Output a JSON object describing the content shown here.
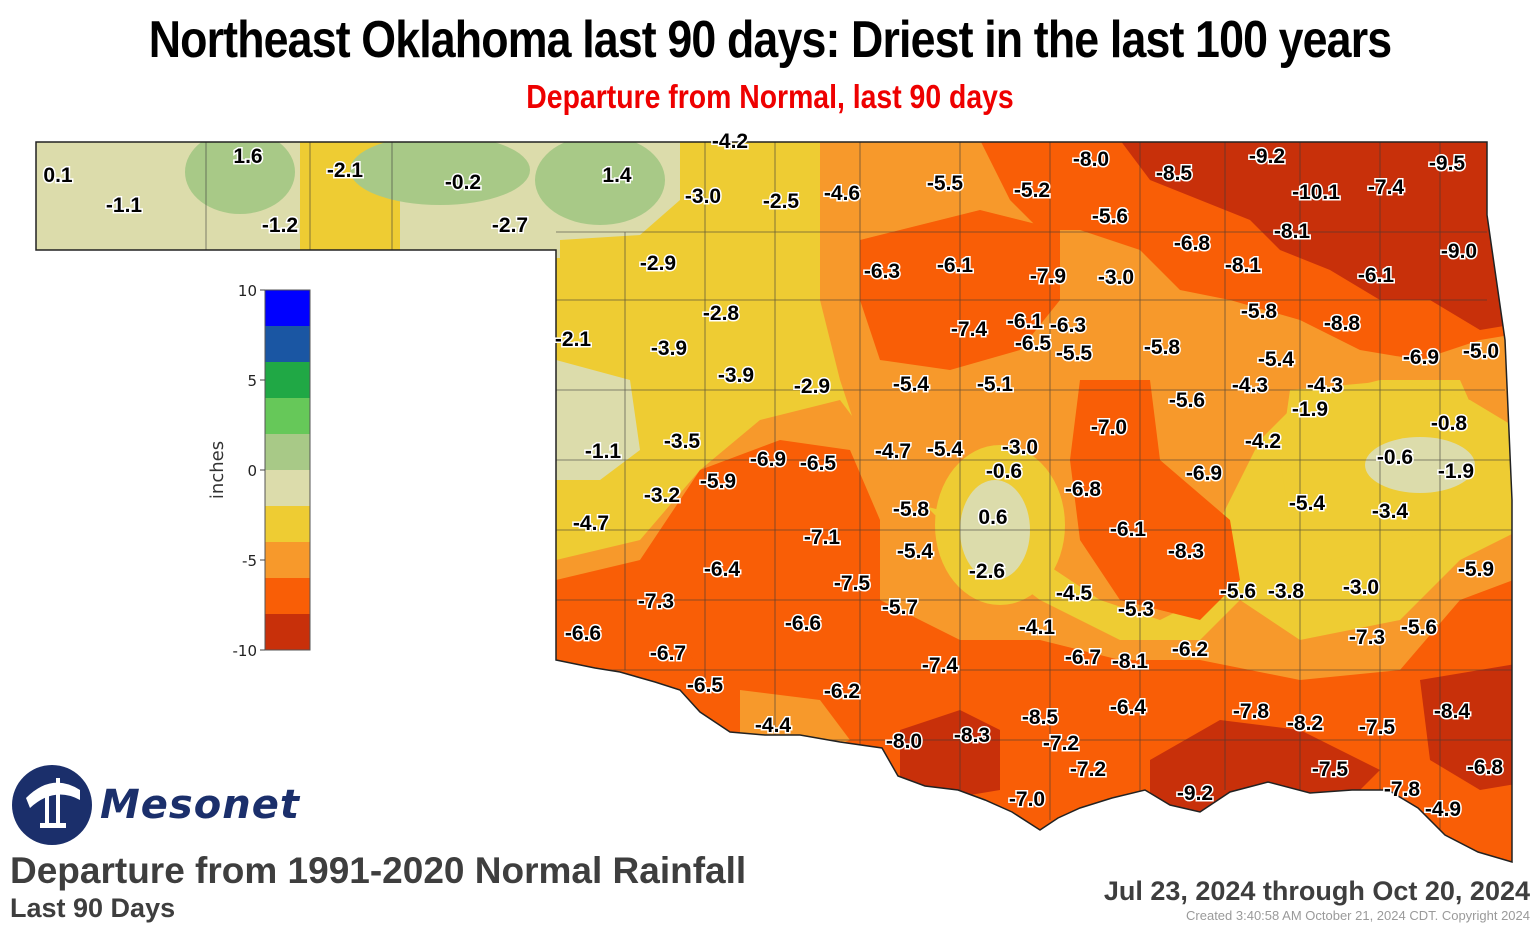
{
  "title": "Northeast Oklahoma last 90 days: Driest in the last 100 years",
  "subtitle": "Departure from Normal, last 90 days",
  "brand": "Mesonet",
  "caption": {
    "title": "Departure from 1991-2020 Normal Rainfall",
    "period": "Last 90 Days",
    "date_range": "Jul 23, 2024 through Oct 20, 2024",
    "created": "Created 3:40:58 AM October 21, 2024 CDT. Copyright 2024"
  },
  "legend": {
    "unit": "inches",
    "tick_labels": [
      "10",
      "5",
      "0",
      "-5",
      "-10"
    ],
    "colors": [
      "#0000ff",
      "#1a56a3",
      "#20a845",
      "#66c859",
      "#a8c987",
      "#dcdcab",
      "#eecc33",
      "#f7992b",
      "#f95e06",
      "#c8300a"
    ]
  },
  "palette": {
    "positive_small": "#dcdcab",
    "green_light": "#a8c987",
    "yellow": "#eecc33",
    "orange_light": "#f7992b",
    "orange": "#f95e06",
    "red": "#c8300a"
  },
  "values": [
    {
      "id": "v1",
      "text": "0.1"
    },
    {
      "id": "v2",
      "text": "-1.1"
    },
    {
      "id": "v3",
      "text": "1.6"
    },
    {
      "id": "v4",
      "text": "-1.2"
    },
    {
      "id": "v5",
      "text": "-2.1"
    },
    {
      "id": "v6",
      "text": "-0.2"
    },
    {
      "id": "v7",
      "text": "-2.7"
    },
    {
      "id": "v8",
      "text": "1.4"
    },
    {
      "id": "v9",
      "text": "-4.2"
    },
    {
      "id": "v10",
      "text": "-3.0"
    },
    {
      "id": "v11",
      "text": "-2.5"
    },
    {
      "id": "v12",
      "text": "-4.6"
    },
    {
      "id": "v13",
      "text": "-5.5"
    },
    {
      "id": "v14",
      "text": "-5.2"
    },
    {
      "id": "v15",
      "text": "-8.0"
    },
    {
      "id": "v16",
      "text": "-8.5"
    },
    {
      "id": "v17",
      "text": "-9.2"
    },
    {
      "id": "v18",
      "text": "-10.1"
    },
    {
      "id": "v19",
      "text": "-7.4"
    },
    {
      "id": "v20",
      "text": "-9.5"
    },
    {
      "id": "v21",
      "text": "-5.6"
    },
    {
      "id": "v22",
      "text": "-6.8"
    },
    {
      "id": "v23",
      "text": "-8.1"
    },
    {
      "id": "v24",
      "text": "-9.0"
    },
    {
      "id": "v25",
      "text": "-2.9"
    },
    {
      "id": "v26",
      "text": "-6.3"
    },
    {
      "id": "v27",
      "text": "-6.1"
    },
    {
      "id": "v28",
      "text": "-7.9"
    },
    {
      "id": "v29",
      "text": "-3.0"
    },
    {
      "id": "v30",
      "text": "-8.1"
    },
    {
      "id": "v31",
      "text": "-6.1"
    },
    {
      "id": "v32",
      "text": "-2.8"
    },
    {
      "id": "v33",
      "text": "-5.8"
    },
    {
      "id": "v34",
      "text": "-8.8"
    },
    {
      "id": "v35",
      "text": "-2.1"
    },
    {
      "id": "v36",
      "text": "-3.9"
    },
    {
      "id": "v37",
      "text": "-7.4"
    },
    {
      "id": "v38",
      "text": "-6.1"
    },
    {
      "id": "v39",
      "text": "-6.3"
    },
    {
      "id": "v40",
      "text": "-6.5"
    },
    {
      "id": "v41",
      "text": "-5.5"
    },
    {
      "id": "v42",
      "text": "-5.8"
    },
    {
      "id": "v43",
      "text": "-5.4"
    },
    {
      "id": "v44",
      "text": "-6.9"
    },
    {
      "id": "v45",
      "text": "-5.0"
    },
    {
      "id": "v46",
      "text": "-3.9"
    },
    {
      "id": "v47",
      "text": "-2.9"
    },
    {
      "id": "v48",
      "text": "-5.4"
    },
    {
      "id": "v49",
      "text": "-5.1"
    },
    {
      "id": "v50",
      "text": "-5.6"
    },
    {
      "id": "v51",
      "text": "-4.3"
    },
    {
      "id": "v52",
      "text": "-4.3"
    },
    {
      "id": "v53",
      "text": "-1.9"
    },
    {
      "id": "v54",
      "text": "-0.8"
    },
    {
      "id": "v55",
      "text": "-7.0"
    },
    {
      "id": "v56",
      "text": "-1.1"
    },
    {
      "id": "v57",
      "text": "-3.5"
    },
    {
      "id": "v58",
      "text": "-4.7"
    },
    {
      "id": "v59",
      "text": "-5.4"
    },
    {
      "id": "v60",
      "text": "-3.0"
    },
    {
      "id": "v61",
      "text": "-4.2"
    },
    {
      "id": "v62",
      "text": "-0.6"
    },
    {
      "id": "v63",
      "text": "-6.9"
    },
    {
      "id": "v64",
      "text": "-6.5"
    },
    {
      "id": "v65",
      "text": "-0.6"
    },
    {
      "id": "v66",
      "text": "-6.9"
    },
    {
      "id": "v67",
      "text": "-1.9"
    },
    {
      "id": "v68",
      "text": "-5.9"
    },
    {
      "id": "v69",
      "text": "-3.2"
    },
    {
      "id": "v70",
      "text": "-6.8"
    },
    {
      "id": "v71",
      "text": "-4.7"
    },
    {
      "id": "v72",
      "text": "-5.8"
    },
    {
      "id": "v73",
      "text": "0.6"
    },
    {
      "id": "v74",
      "text": "-5.4"
    },
    {
      "id": "v75",
      "text": "-3.4"
    },
    {
      "id": "v76",
      "text": "-7.1"
    },
    {
      "id": "v77",
      "text": "-6.1"
    },
    {
      "id": "v78",
      "text": "-5.4"
    },
    {
      "id": "v79",
      "text": "-8.3"
    },
    {
      "id": "v80",
      "text": "-6.4"
    },
    {
      "id": "v81",
      "text": "-2.6"
    },
    {
      "id": "v82",
      "text": "-5.9"
    },
    {
      "id": "v83",
      "text": "-7.3"
    },
    {
      "id": "v84",
      "text": "-7.5"
    },
    {
      "id": "v85",
      "text": "-4.5"
    },
    {
      "id": "v86",
      "text": "-5.6"
    },
    {
      "id": "v87",
      "text": "-3.8"
    },
    {
      "id": "v88",
      "text": "-3.0"
    },
    {
      "id": "v89",
      "text": "-5.7"
    },
    {
      "id": "v90",
      "text": "-5.3"
    },
    {
      "id": "v91",
      "text": "-6.6"
    },
    {
      "id": "v92",
      "text": "-6.6"
    },
    {
      "id": "v93",
      "text": "-4.1"
    },
    {
      "id": "v94",
      "text": "-7.3"
    },
    {
      "id": "v95",
      "text": "-5.6"
    },
    {
      "id": "v96",
      "text": "-6.7"
    },
    {
      "id": "v97",
      "text": "-6.7"
    },
    {
      "id": "v98",
      "text": "-8.1"
    },
    {
      "id": "v99",
      "text": "-6.2"
    },
    {
      "id": "v100",
      "text": "-7.4"
    },
    {
      "id": "v101",
      "text": "-6.5"
    },
    {
      "id": "v102",
      "text": "-6.2"
    },
    {
      "id": "v103",
      "text": "-6.4"
    },
    {
      "id": "v104",
      "text": "-7.8"
    },
    {
      "id": "v105",
      "text": "-8.4"
    },
    {
      "id": "v106",
      "text": "-4.4"
    },
    {
      "id": "v107",
      "text": "-8.5"
    },
    {
      "id": "v108",
      "text": "-8.2"
    },
    {
      "id": "v109",
      "text": "-7.5"
    },
    {
      "id": "v110",
      "text": "-8.0"
    },
    {
      "id": "v111",
      "text": "-8.3"
    },
    {
      "id": "v112",
      "text": "-7.2"
    },
    {
      "id": "v113",
      "text": "-7.2"
    },
    {
      "id": "v114",
      "text": "-7.5"
    },
    {
      "id": "v115",
      "text": "-6.8"
    },
    {
      "id": "v116",
      "text": "-9.2"
    },
    {
      "id": "v117",
      "text": "-7.8"
    },
    {
      "id": "v118",
      "text": "-7.0"
    },
    {
      "id": "v119",
      "text": "-4.9"
    }
  ]
}
